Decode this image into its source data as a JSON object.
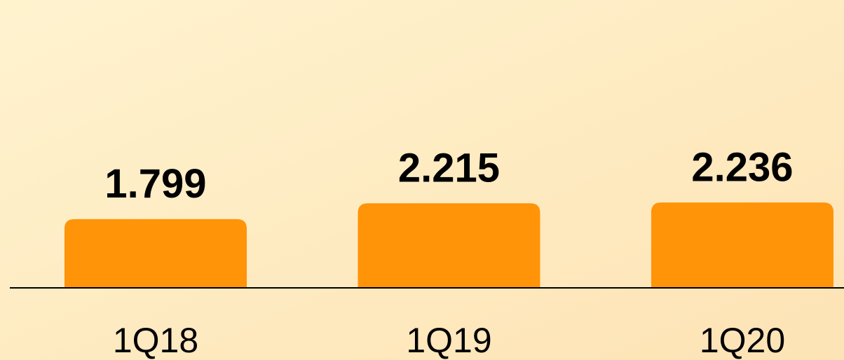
{
  "chart_data": {
    "type": "bar",
    "categories": [
      "1Q18",
      "1Q19",
      "1Q20"
    ],
    "values": [
      1.799,
      2.215,
      2.236
    ],
    "color": "#ff9408",
    "ylim": [
      0,
      7.5
    ]
  }
}
